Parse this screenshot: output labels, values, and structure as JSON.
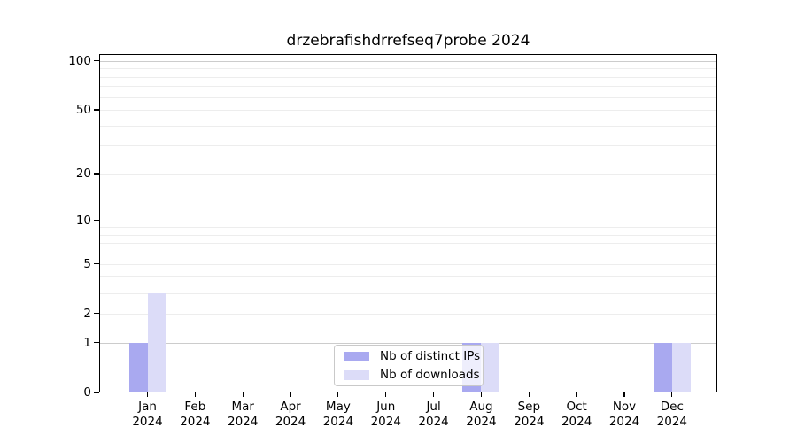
{
  "chart_data": {
    "type": "bar",
    "title": "drzebrafishdrrefseq7probe 2024",
    "categories": [
      "Jan",
      "Feb",
      "Mar",
      "Apr",
      "May",
      "Jun",
      "Jul",
      "Aug",
      "Sep",
      "Oct",
      "Nov",
      "Dec"
    ],
    "x_tick_year_line": "2024",
    "series": [
      {
        "name": "Nb of distinct IPs",
        "color": "#a9a9f0",
        "values": [
          1,
          0,
          0,
          0,
          0,
          0,
          0,
          1,
          0,
          0,
          0,
          1
        ]
      },
      {
        "name": "Nb of downloads",
        "color": "#dcdcf8",
        "values": [
          3,
          0,
          0,
          0,
          0,
          0,
          0,
          1,
          0,
          0,
          0,
          1
        ]
      }
    ],
    "y_axis": {
      "scale": "log1p",
      "ylim": [
        0,
        110
      ],
      "ticks": [
        0,
        1,
        2,
        5,
        10,
        20,
        50,
        100
      ],
      "gridlines_decade": [
        1,
        10,
        100
      ],
      "gridlines_minor": [
        2,
        3,
        4,
        5,
        6,
        7,
        8,
        9,
        20,
        30,
        40,
        50,
        60,
        70,
        80,
        90
      ]
    },
    "legend": {
      "position": "lower-center",
      "items": [
        "Nb of distinct IPs",
        "Nb of downloads"
      ]
    },
    "grid": true
  },
  "colors": {
    "background": "#ffffff",
    "axis": "#000000",
    "grid_decade": "#cccccc",
    "grid_minor": "#ededed",
    "legend_border": "#c9c9c9",
    "text": "#000000"
  }
}
